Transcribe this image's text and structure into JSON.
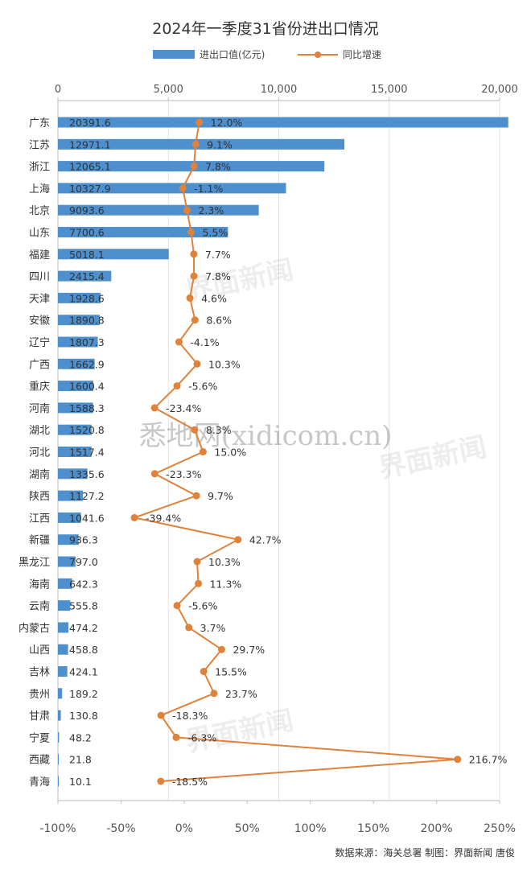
{
  "chart_data": {
    "type": "bar",
    "title": "2024年一季度31省份进出口情况",
    "legend": {
      "placement": "top-center",
      "items": [
        "进出口值(亿元)",
        "同比增速"
      ]
    },
    "top_axis": {
      "ticks": [
        "0",
        "5,000",
        "10,000",
        "15,000",
        "20,000"
      ],
      "range": [
        0,
        20000
      ]
    },
    "bottom_axis": {
      "ticks": [
        "-100%",
        "-50%",
        "0%",
        "50%",
        "100%",
        "150%",
        "200%",
        "250%"
      ],
      "range": [
        -100,
        250
      ]
    },
    "categories": [
      "广东",
      "江苏",
      "浙江",
      "上海",
      "北京",
      "山东",
      "福建",
      "四川",
      "天津",
      "安徽",
      "辽宁",
      "广西",
      "重庆",
      "河南",
      "湖北",
      "河北",
      "湖南",
      "陕西",
      "江西",
      "新疆",
      "黑龙江",
      "海南",
      "云南",
      "内蒙古",
      "山西",
      "吉林",
      "贵州",
      "甘肃",
      "宁夏",
      "西藏",
      "青海"
    ],
    "series": [
      {
        "name": "进出口值(亿元)",
        "type": "bar",
        "color": "#4e8fcd",
        "values": [
          20391.6,
          12971.1,
          12065.1,
          10327.9,
          9093.6,
          7700.6,
          5018.1,
          2415.4,
          1928.6,
          1890.8,
          1807.3,
          1662.9,
          1600.4,
          1588.3,
          1520.8,
          1517.4,
          1335.6,
          1127.2,
          1041.6,
          936.3,
          797.0,
          642.3,
          555.8,
          474.2,
          458.8,
          424.1,
          189.2,
          130.8,
          48.2,
          21.8,
          10.1
        ],
        "labels": [
          "20391.6",
          "12971.1",
          "12065.1",
          "10327.9",
          "9093.6",
          "7700.6",
          "5018.1",
          "2415.4",
          "1928.6",
          "1890.8",
          "1807.3",
          "1662.9",
          "1600.4",
          "1588.3",
          "1520.8",
          "1517.4",
          "1335.6",
          "1127.2",
          "1041.6",
          "936.3",
          "797.0",
          "642.3",
          "555.8",
          "474.2",
          "458.8",
          "424.1",
          "189.2",
          "130.8",
          "48.2",
          "21.8",
          "10.1"
        ]
      },
      {
        "name": "同比增速",
        "type": "line",
        "color": "#e0823a",
        "values": [
          12.0,
          9.1,
          7.8,
          -1.1,
          2.3,
          5.5,
          7.7,
          7.8,
          4.6,
          8.6,
          -4.1,
          10.3,
          -5.6,
          -23.4,
          8.3,
          15.0,
          -23.3,
          9.7,
          -39.4,
          42.7,
          10.3,
          11.3,
          -5.6,
          3.7,
          29.7,
          15.5,
          23.7,
          -18.3,
          -6.3,
          216.7,
          -18.5
        ],
        "labels": [
          "12.0%",
          "9.1%",
          "7.8%",
          "-1.1%",
          "2.3%",
          "5.5%",
          "7.7%",
          "7.8%",
          "4.6%",
          "8.6%",
          "-4.1%",
          "10.3%",
          "-5.6%",
          "-23.4%",
          "8.3%",
          "15.0%",
          "-23.3%",
          "9.7%",
          "-39.4%",
          "42.7%",
          "10.3%",
          "11.3%",
          "-5.6%",
          "3.7%",
          "29.7%",
          "15.5%",
          "23.7%",
          "-18.3%",
          "-6.3%",
          "216.7%",
          "-18.5%"
        ]
      }
    ],
    "grid": true
  },
  "footer": {
    "source": "数据来源：海关总署  制图：界面新闻 唐俊"
  },
  "watermarks": [
    "界面新闻",
    "悉地网(xidicom.cn)"
  ]
}
